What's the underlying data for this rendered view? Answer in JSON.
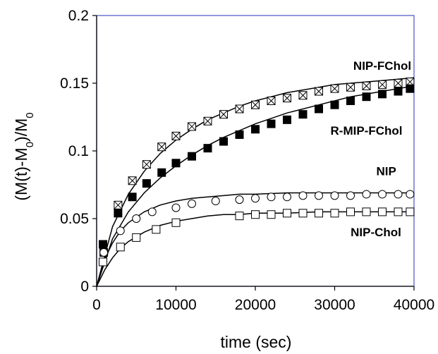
{
  "chart_data": {
    "type": "scatter",
    "title": "",
    "xlabel": "time (sec)",
    "ylabel": {
      "base": "(M(t)-M",
      "sub1": "0",
      "mid": ")/M",
      "sub2": "0"
    },
    "xlim": [
      0,
      40000
    ],
    "ylim": [
      0,
      0.2
    ],
    "xticks": [
      "0",
      "10000",
      "20000",
      "30000",
      "40000"
    ],
    "yticks": [
      "0",
      "0.05",
      "0.1",
      "0.15",
      "0.2"
    ],
    "grid": false,
    "legend": "none",
    "frame_color": "#4a52c4",
    "series": [
      {
        "name": "NIP-FChol",
        "marker": "square-x",
        "x": [
          900,
          2700,
          4500,
          6300,
          8200,
          10000,
          12000,
          14000,
          16000,
          18000,
          20000,
          22000,
          24000,
          26000,
          28000,
          30000,
          32000,
          34000,
          36000,
          38000,
          39500
        ],
        "y": [
          0.025,
          0.06,
          0.078,
          0.09,
          0.103,
          0.111,
          0.118,
          0.122,
          0.127,
          0.131,
          0.134,
          0.137,
          0.139,
          0.141,
          0.144,
          0.146,
          0.147,
          0.148,
          0.149,
          0.15,
          0.151
        ],
        "fit": {
          "x": [
            0,
            2000,
            4000,
            6000,
            8000,
            10000,
            12000,
            14000,
            16000,
            18000,
            20000,
            22000,
            24000,
            26000,
            28000,
            30000,
            32000,
            34000,
            36000,
            38000,
            40000
          ],
          "y": [
            0,
            0.044,
            0.068,
            0.085,
            0.098,
            0.108,
            0.116,
            0.123,
            0.128,
            0.133,
            0.137,
            0.14,
            0.143,
            0.145,
            0.147,
            0.149,
            0.15,
            0.151,
            0.152,
            0.153,
            0.154
          ]
        }
      },
      {
        "name": "R-MIP-FChol",
        "marker": "filled-square",
        "x": [
          800,
          2700,
          4500,
          6300,
          8200,
          10000,
          12000,
          14000,
          16000,
          18000,
          20000,
          22000,
          24000,
          26000,
          28000,
          30000,
          32000,
          34000,
          36000,
          38000,
          39500
        ],
        "y": [
          0.031,
          0.054,
          0.066,
          0.076,
          0.084,
          0.091,
          0.096,
          0.102,
          0.107,
          0.112,
          0.116,
          0.12,
          0.123,
          0.127,
          0.131,
          0.134,
          0.137,
          0.14,
          0.142,
          0.144,
          0.146
        ],
        "fit": {
          "x": [
            0,
            2000,
            4000,
            6000,
            8000,
            10000,
            12000,
            14000,
            16000,
            18000,
            20000,
            22000,
            24000,
            26000,
            28000,
            30000,
            32000,
            34000,
            36000,
            38000,
            40000
          ],
          "y": [
            0,
            0.035,
            0.055,
            0.069,
            0.08,
            0.089,
            0.097,
            0.104,
            0.11,
            0.115,
            0.12,
            0.124,
            0.128,
            0.131,
            0.134,
            0.137,
            0.14,
            0.142,
            0.144,
            0.146,
            0.148
          ]
        }
      },
      {
        "name": "NIP",
        "marker": "open-circle",
        "x": [
          900,
          3000,
          5000,
          7000,
          10000,
          12000,
          15000,
          18000,
          20000,
          22000,
          24000,
          26000,
          28000,
          30000,
          32000,
          34000,
          36000,
          38000,
          39500
        ],
        "y": [
          0.025,
          0.041,
          0.05,
          0.055,
          0.058,
          0.061,
          0.063,
          0.064,
          0.065,
          0.066,
          0.066,
          0.067,
          0.067,
          0.067,
          0.067,
          0.068,
          0.068,
          0.068,
          0.068
        ],
        "fit": {
          "x": [
            0,
            1000,
            2000,
            3000,
            4000,
            6000,
            8000,
            10000,
            12000,
            14000,
            16000,
            18000,
            20000,
            24000,
            28000,
            32000,
            36000,
            40000
          ],
          "y": [
            0,
            0.02,
            0.032,
            0.041,
            0.047,
            0.055,
            0.06,
            0.063,
            0.065,
            0.066,
            0.067,
            0.068,
            0.068,
            0.069,
            0.069,
            0.069,
            0.069,
            0.069
          ]
        }
      },
      {
        "name": "NIP-Chol",
        "marker": "open-square",
        "x": [
          800,
          3000,
          5000,
          7500,
          10000,
          18000,
          20000,
          22000,
          24000,
          26000,
          28000,
          30000,
          32000,
          34000,
          36000,
          38000,
          39500
        ],
        "y": [
          0.018,
          0.029,
          0.036,
          0.042,
          0.047,
          0.052,
          0.053,
          0.053,
          0.054,
          0.054,
          0.054,
          0.054,
          0.055,
          0.055,
          0.055,
          0.055,
          0.055
        ],
        "fit": {
          "x": [
            0,
            1000,
            2000,
            3000,
            4000,
            6000,
            8000,
            10000,
            12000,
            14000,
            16000,
            18000,
            20000,
            24000,
            28000,
            32000,
            36000,
            40000
          ],
          "y": [
            0,
            0.012,
            0.021,
            0.028,
            0.033,
            0.04,
            0.045,
            0.048,
            0.05,
            0.052,
            0.053,
            0.053,
            0.054,
            0.054,
            0.055,
            0.055,
            0.055,
            0.055
          ]
        }
      }
    ],
    "annotations": [
      {
        "text": "NIP-FChol",
        "series": "NIP-FChol",
        "x": 36000,
        "y": 0.16
      },
      {
        "text": "R-MIP-FChol",
        "series": "R-MIP-FChol",
        "x": 34000,
        "y": 0.112
      },
      {
        "text": "NIP",
        "series": "NIP",
        "x": 36500,
        "y": 0.082
      },
      {
        "text": "NIP-Chol",
        "series": "NIP-Chol",
        "x": 35200,
        "y": 0.037
      }
    ]
  }
}
